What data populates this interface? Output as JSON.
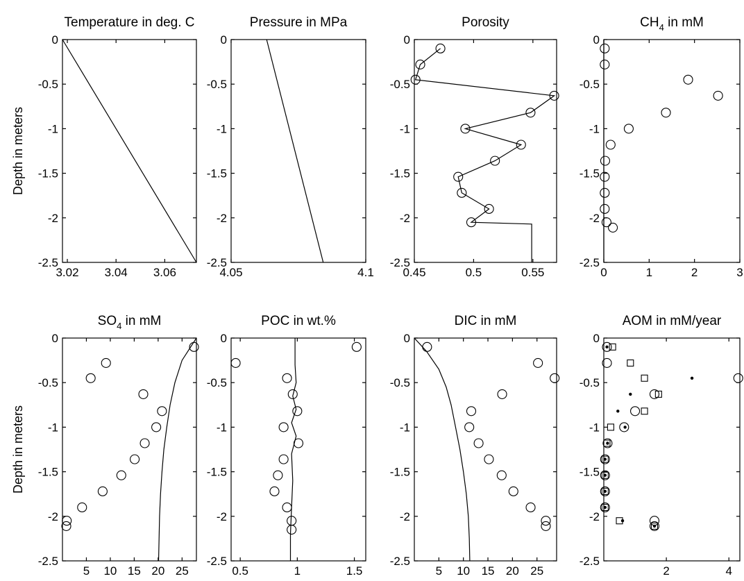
{
  "ylabel": "Depth in meters",
  "chart_data": [
    {
      "type": "line",
      "title": "Temperature in deg. C",
      "xlim": [
        3.018,
        3.073
      ],
      "ylim": [
        -2.5,
        0
      ],
      "xticks": [
        3.02,
        3.04,
        3.06
      ],
      "xtick_labels": [
        "3.02",
        "3.04",
        "3.06"
      ],
      "yticks": [
        0,
        -0.5,
        -1,
        -1.5,
        -2,
        -2.5
      ],
      "ytick_labels": [
        "0",
        "-0.5",
        "-1",
        "-1.5",
        "-2",
        "-2.5"
      ],
      "ylabel": "Depth in meters",
      "series": [
        {
          "kind": "line",
          "points": [
            [
              3.018,
              0
            ],
            [
              3.073,
              -2.5
            ]
          ]
        }
      ]
    },
    {
      "type": "line",
      "title": "Pressure in MPa",
      "xlim": [
        4.05,
        4.1
      ],
      "ylim": [
        -2.5,
        0
      ],
      "xticks": [
        4.05,
        4.1
      ],
      "xtick_labels": [
        "4.05",
        "4.1"
      ],
      "yticks": [
        0,
        -0.5,
        -1,
        -1.5,
        -2,
        -2.5
      ],
      "ytick_labels": [
        "0",
        "-0.5",
        "-1",
        "-1.5",
        "-2",
        "-2.5"
      ],
      "series": [
        {
          "kind": "line",
          "points": [
            [
              4.0632,
              0
            ],
            [
              4.0842,
              -2.5
            ]
          ]
        }
      ]
    },
    {
      "type": "line",
      "title": "Porosity",
      "xlim": [
        0.45,
        0.57
      ],
      "ylim": [
        -2.5,
        0
      ],
      "xticks": [
        0.45,
        0.5,
        0.55
      ],
      "xtick_labels": [
        "0.45",
        "0.5",
        "0.55"
      ],
      "yticks": [
        0,
        -0.5,
        -1,
        -1.5,
        -2,
        -2.5
      ],
      "ytick_labels": [
        "0",
        "-0.5",
        "-1",
        "-1.5",
        "-2",
        "-2.5"
      ],
      "series": [
        {
          "kind": "line",
          "points": [
            [
              0.472,
              -0.1
            ],
            [
              0.455,
              -0.28
            ],
            [
              0.451,
              -0.45
            ],
            [
              0.568,
              -0.63
            ],
            [
              0.548,
              -0.82
            ],
            [
              0.493,
              -1.0
            ],
            [
              0.54,
              -1.18
            ],
            [
              0.518,
              -1.36
            ],
            [
              0.487,
              -1.54
            ],
            [
              0.49,
              -1.72
            ],
            [
              0.513,
              -1.9
            ],
            [
              0.498,
              -2.05
            ],
            [
              0.549,
              -2.07
            ],
            [
              0.549,
              -2.5
            ]
          ]
        },
        {
          "kind": "circle",
          "points": [
            [
              0.472,
              -0.1
            ],
            [
              0.455,
              -0.28
            ],
            [
              0.451,
              -0.45
            ],
            [
              0.568,
              -0.63
            ],
            [
              0.548,
              -0.82
            ],
            [
              0.493,
              -1.0
            ],
            [
              0.54,
              -1.18
            ],
            [
              0.518,
              -1.36
            ],
            [
              0.487,
              -1.54
            ],
            [
              0.49,
              -1.72
            ],
            [
              0.513,
              -1.9
            ],
            [
              0.498,
              -2.05
            ]
          ]
        }
      ]
    },
    {
      "type": "scatter",
      "title": "CH4 in mM",
      "title_parts": [
        "CH",
        "4",
        " in mM"
      ],
      "xlim": [
        0,
        3
      ],
      "ylim": [
        -2.5,
        0
      ],
      "xticks": [
        0,
        1,
        2,
        3
      ],
      "xtick_labels": [
        "0",
        "1",
        "2",
        "3"
      ],
      "yticks": [
        0,
        -0.5,
        -1,
        -1.5,
        -2,
        -2.5
      ],
      "ytick_labels": [
        "0",
        "-0.5",
        "-1",
        "-1.5",
        "-2",
        "-2.5"
      ],
      "series": [
        {
          "kind": "line",
          "points": [
            [
              0,
              0
            ],
            [
              0,
              -2.5
            ]
          ]
        },
        {
          "kind": "circle",
          "points": [
            [
              0.02,
              -0.1
            ],
            [
              0.02,
              -0.28
            ],
            [
              1.86,
              -0.45
            ],
            [
              2.52,
              -0.63
            ],
            [
              1.37,
              -0.82
            ],
            [
              0.55,
              -1.0
            ],
            [
              0.15,
              -1.18
            ],
            [
              0.03,
              -1.36
            ],
            [
              0.02,
              -1.54
            ],
            [
              0.02,
              -1.72
            ],
            [
              0.02,
              -1.9
            ],
            [
              0.06,
              -2.05
            ],
            [
              0.2,
              -2.11
            ]
          ]
        }
      ]
    },
    {
      "type": "scatter",
      "title": "SO4 in mM",
      "title_parts": [
        "SO",
        "4",
        " in mM"
      ],
      "xlim": [
        0,
        28
      ],
      "ylim": [
        -2.5,
        0
      ],
      "xticks": [
        5,
        10,
        15,
        20,
        25
      ],
      "xtick_labels": [
        "5",
        "10",
        "15",
        "20",
        "25"
      ],
      "yticks": [
        0,
        -0.5,
        -1,
        -1.5,
        -2,
        -2.5
      ],
      "ytick_labels": [
        "0",
        "-0.5",
        "-1",
        "-1.5",
        "-2",
        "-2.5"
      ],
      "ylabel": "Depth in meters",
      "series": [
        {
          "kind": "line",
          "points": [
            [
              28,
              0
            ],
            [
              25,
              -0.25
            ],
            [
              23.5,
              -0.5
            ],
            [
              22.5,
              -0.75
            ],
            [
              21.8,
              -1.0
            ],
            [
              21.2,
              -1.25
            ],
            [
              20.8,
              -1.5
            ],
            [
              20.5,
              -1.75
            ],
            [
              20.3,
              -2.0
            ],
            [
              20.2,
              -2.25
            ],
            [
              20.1,
              -2.5
            ]
          ]
        },
        {
          "kind": "circle",
          "points": [
            [
              27.5,
              -0.1
            ],
            [
              9.1,
              -0.28
            ],
            [
              5.9,
              -0.45
            ],
            [
              16.9,
              -0.63
            ],
            [
              20.8,
              -0.82
            ],
            [
              19.6,
              -1.0
            ],
            [
              17.2,
              -1.18
            ],
            [
              15.1,
              -1.36
            ],
            [
              12.3,
              -1.54
            ],
            [
              8.4,
              -1.72
            ],
            [
              4.1,
              -1.9
            ],
            [
              0.9,
              -2.05
            ],
            [
              0.8,
              -2.11
            ]
          ]
        }
      ]
    },
    {
      "type": "scatter",
      "title": "POC in wt.%",
      "xlim": [
        0.42,
        1.6
      ],
      "ylim": [
        -2.5,
        0
      ],
      "xticks": [
        0.5,
        1,
        1.5
      ],
      "xtick_labels": [
        "0.5",
        "1",
        "1.5"
      ],
      "yticks": [
        0,
        -0.5,
        -1,
        -1.5,
        -2,
        -2.5
      ],
      "ytick_labels": [
        "0",
        "-0.5",
        "-1",
        "-1.5",
        "-2",
        "-2.5"
      ],
      "series": [
        {
          "kind": "line",
          "points": [
            [
              0.98,
              0
            ],
            [
              0.98,
              -0.3
            ],
            [
              0.99,
              -0.5
            ],
            [
              0.96,
              -0.65
            ],
            [
              0.99,
              -0.8
            ],
            [
              0.95,
              -0.95
            ],
            [
              0.99,
              -1.1
            ],
            [
              0.95,
              -1.3
            ],
            [
              0.96,
              -1.6
            ],
            [
              0.95,
              -1.9
            ],
            [
              0.94,
              -2.2
            ],
            [
              0.94,
              -2.5
            ]
          ]
        },
        {
          "kind": "circle",
          "points": [
            [
              1.52,
              -0.1
            ],
            [
              0.46,
              -0.28
            ],
            [
              0.91,
              -0.45
            ],
            [
              0.96,
              -0.63
            ],
            [
              1.0,
              -0.82
            ],
            [
              0.88,
              -1.0
            ],
            [
              1.01,
              -1.18
            ],
            [
              0.88,
              -1.36
            ],
            [
              0.83,
              -1.54
            ],
            [
              0.8,
              -1.72
            ],
            [
              0.91,
              -1.9
            ],
            [
              0.95,
              -2.05
            ],
            [
              0.95,
              -2.15
            ]
          ]
        }
      ]
    },
    {
      "type": "scatter",
      "title": "DIC in mM",
      "xlim": [
        0,
        29
      ],
      "ylim": [
        -2.5,
        0
      ],
      "xticks": [
        5,
        10,
        15,
        20,
        25
      ],
      "xtick_labels": [
        "5",
        "10",
        "15",
        "20",
        "25"
      ],
      "yticks": [
        0,
        -0.5,
        -1,
        -1.5,
        -2,
        -2.5
      ],
      "ytick_labels": [
        "0",
        "-0.5",
        "-1",
        "-1.5",
        "-2",
        "-2.5"
      ],
      "series": [
        {
          "kind": "line",
          "points": [
            [
              0,
              0
            ],
            [
              2.5,
              -0.15
            ],
            [
              5,
              -0.35
            ],
            [
              6.5,
              -0.55
            ],
            [
              7.5,
              -0.75
            ],
            [
              8.4,
              -1.0
            ],
            [
              9.3,
              -1.25
            ],
            [
              10.0,
              -1.5
            ],
            [
              10.6,
              -1.75
            ],
            [
              11.0,
              -2.0
            ],
            [
              11.2,
              -2.25
            ],
            [
              11.3,
              -2.5
            ]
          ]
        },
        {
          "kind": "circle",
          "points": [
            [
              2.6,
              -0.1
            ],
            [
              25.2,
              -0.28
            ],
            [
              28.6,
              -0.45
            ],
            [
              17.9,
              -0.63
            ],
            [
              11.6,
              -0.82
            ],
            [
              11.2,
              -1.0
            ],
            [
              13.1,
              -1.18
            ],
            [
              15.2,
              -1.36
            ],
            [
              17.8,
              -1.54
            ],
            [
              20.2,
              -1.72
            ],
            [
              23.7,
              -1.9
            ],
            [
              26.8,
              -2.05
            ],
            [
              26.8,
              -2.11
            ]
          ]
        }
      ]
    },
    {
      "type": "scatter",
      "title": "AOM in mM/year",
      "xlim": [
        0,
        4.35
      ],
      "ylim": [
        -2.5,
        0
      ],
      "xticks": [
        2,
        4
      ],
      "xtick_labels": [
        "2",
        "4"
      ],
      "yticks": [
        0,
        -0.5,
        -1,
        -1.5,
        -2,
        -2.5
      ],
      "ytick_labels": [
        "0",
        "-0.5",
        "-1",
        "-1.5",
        "-2",
        "-2.5"
      ],
      "series": [
        {
          "kind": "circle",
          "points": [
            [
              0.1,
              -0.1
            ],
            [
              0.1,
              -0.28
            ],
            [
              4.3,
              -0.45
            ],
            [
              1.62,
              -0.63
            ],
            [
              1.0,
              -0.82
            ],
            [
              0.65,
              -1.0
            ],
            [
              0.12,
              -1.18
            ],
            [
              0.04,
              -1.36
            ],
            [
              0.04,
              -1.54
            ],
            [
              0.04,
              -1.72
            ],
            [
              0.04,
              -1.9
            ],
            [
              1.62,
              -2.05
            ],
            [
              1.62,
              -2.11
            ]
          ]
        },
        {
          "kind": "dot",
          "points": [
            [
              0.1,
              -0.1
            ],
            [
              2.82,
              -0.45
            ],
            [
              0.85,
              -0.63
            ],
            [
              0.45,
              -0.82
            ],
            [
              0.68,
              -1.0
            ],
            [
              0.12,
              -1.18
            ],
            [
              0.04,
              -1.36
            ],
            [
              0.04,
              -1.54
            ],
            [
              0.04,
              -1.72
            ],
            [
              0.04,
              -1.9
            ],
            [
              0.6,
              -2.05
            ],
            [
              1.62,
              -2.11
            ]
          ]
        },
        {
          "kind": "square",
          "points": [
            [
              0.28,
              -0.1
            ],
            [
              0.85,
              -0.28
            ],
            [
              1.3,
              -0.45
            ],
            [
              1.75,
              -0.63
            ],
            [
              1.3,
              -0.82
            ],
            [
              0.22,
              -1.0
            ],
            [
              0.1,
              -1.18
            ],
            [
              0.04,
              -1.36
            ],
            [
              0.04,
              -1.54
            ],
            [
              0.04,
              -1.72
            ],
            [
              0.04,
              -1.9
            ],
            [
              0.5,
              -2.05
            ],
            [
              1.62,
              -2.11
            ]
          ]
        }
      ]
    }
  ]
}
